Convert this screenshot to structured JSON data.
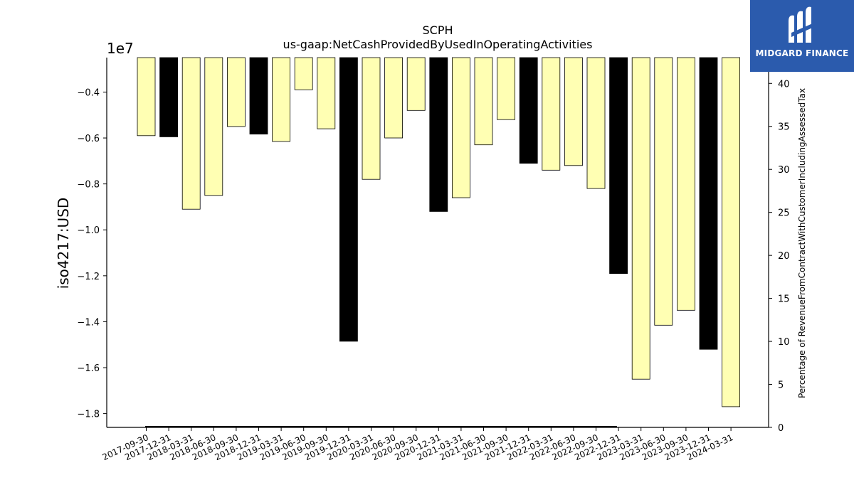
{
  "chart_data": {
    "type": "bar",
    "title": "SCPH",
    "subtitle": "us-gaap:NetCashProvidedByUsedInOperatingActivities",
    "ylabel": "iso4217:USD",
    "y_offset_label": "1e7",
    "y2label": "Percentage of RevenueFromContractWithCustomerIncludingAssessedTax",
    "ylim": [
      -18600000.0,
      -2500000.0
    ],
    "y2lim": [
      0,
      43
    ],
    "yticks": [
      -0.4,
      -0.6,
      -0.8,
      -1.0,
      -1.2,
      -1.4,
      -1.6,
      -1.8
    ],
    "y2ticks": [
      0,
      5,
      10,
      15,
      20,
      25,
      30,
      35,
      40
    ],
    "categories": [
      "2017-09-30",
      "2017-12-31",
      "2018-03-31",
      "2018-06-30",
      "2018-09-30",
      "2018-12-31",
      "2019-03-31",
      "2019-06-30",
      "2019-09-30",
      "2019-12-31",
      "2020-03-31",
      "2020-06-30",
      "2020-09-30",
      "2020-12-31",
      "2021-03-31",
      "2021-06-30",
      "2021-09-30",
      "2021-12-31",
      "2022-03-31",
      "2022-06-30",
      "2022-09-30",
      "2022-12-31",
      "2023-03-31",
      "2023-06-30",
      "2023-09-30",
      "2023-12-31",
      "2024-03-31"
    ],
    "values": [
      -5900000,
      -5950000,
      -9100000,
      -8500000,
      -5500000,
      -5830000,
      -6150000,
      -3900000,
      -5600000,
      -14850000,
      -7800000,
      -6000000,
      -4800000,
      -9200000,
      -8600000,
      -6300000,
      -5200000,
      -7100000,
      -7400000,
      -7200000,
      -8200000,
      -11900000,
      -16500000,
      -14150000,
      -13500000,
      -15200000,
      -17700000
    ],
    "annual": [
      false,
      true,
      false,
      false,
      false,
      true,
      false,
      false,
      false,
      true,
      false,
      false,
      false,
      true,
      false,
      false,
      false,
      true,
      false,
      false,
      false,
      true,
      false,
      false,
      false,
      true,
      false
    ],
    "colors": {
      "quarter": "#ffffb3",
      "annual": "#000000",
      "edge": "#000000"
    }
  },
  "logo": {
    "text": "MIDGARD FINANCE",
    "bg": "#2b5bad"
  }
}
